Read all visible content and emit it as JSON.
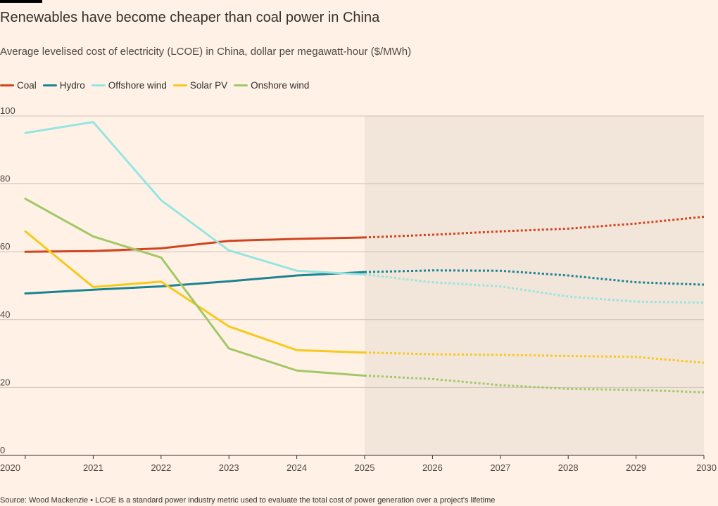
{
  "title": "Renewables have become cheaper than coal power in China",
  "subtitle": "Average levelised cost of electricity (LCOE) in China, dollar per megawatt-hour ($/MWh)",
  "source": "Source: Wood Mackenzie • LCOE is a standard power industry metric used to evaluate the total cost of power generation over a project's lifetime",
  "chart_data": {
    "type": "line",
    "title": "Renewables have become cheaper than coal power in China",
    "subtitle": "Average levelised cost of electricity (LCOE) in China, dollar per megawatt-hour ($/MWh)",
    "xlabel": "",
    "ylabel": "",
    "x": [
      2020,
      2021,
      2022,
      2023,
      2024,
      2025,
      2026,
      2027,
      2028,
      2029,
      2030
    ],
    "xlim": [
      2020,
      2030
    ],
    "ylim": [
      0,
      100
    ],
    "yticks": [
      0,
      20,
      40,
      60,
      80,
      100
    ],
    "xticks": [
      "2020",
      "2021",
      "2022",
      "2023",
      "2024",
      "2025",
      "2026",
      "2027",
      "2028",
      "2029",
      "2030"
    ],
    "grid": "horizontal",
    "legend_position": "top-left",
    "projection_start": 2025,
    "projection_style": "dotted lines with shaded background from 2025 to 2030",
    "series": [
      {
        "name": "Coal",
        "color": "#d2431f",
        "values": [
          60,
          60.2,
          61,
          63.2,
          63.8,
          64.2,
          65,
          66,
          66.8,
          68.3,
          70.3
        ]
      },
      {
        "name": "Hydro",
        "color": "#1a8393",
        "values": [
          47.7,
          48.8,
          49.8,
          51.3,
          53,
          54,
          54.5,
          54.4,
          53,
          51,
          50.3
        ]
      },
      {
        "name": "Offshore wind",
        "color": "#96e5e1",
        "values": [
          95,
          98.2,
          75.2,
          60.4,
          54.4,
          53.3,
          51,
          49.8,
          46.8,
          45.3,
          45
        ]
      },
      {
        "name": "Solar PV",
        "color": "#f7c91d",
        "values": [
          66,
          49.6,
          51.2,
          38,
          31,
          30.3,
          29.8,
          29.6,
          29.3,
          29,
          27.3
        ]
      },
      {
        "name": "Onshore wind",
        "color": "#a2c866",
        "values": [
          75.6,
          64.5,
          58.3,
          31.5,
          25,
          23.5,
          22.5,
          20.7,
          19.6,
          19.3,
          18.6
        ]
      }
    ]
  }
}
